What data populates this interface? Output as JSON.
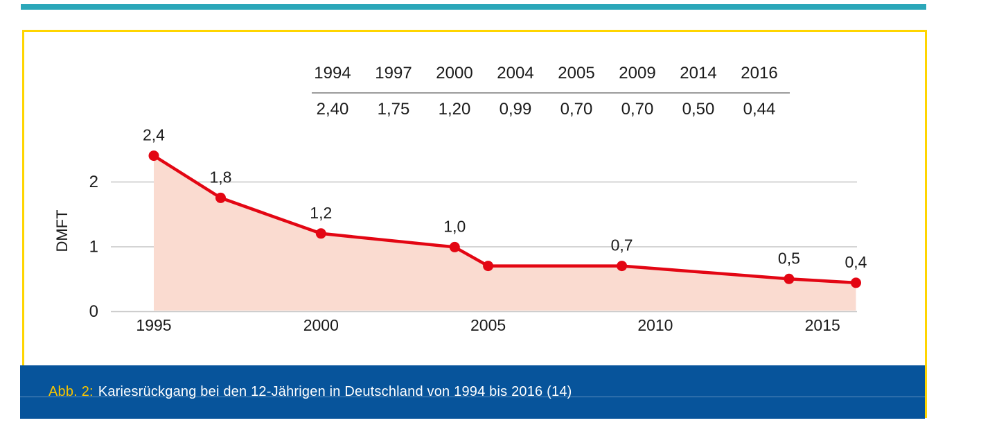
{
  "accent_bar": {
    "color": "#2BA7B9"
  },
  "figure_box": {
    "border_color": "#FFD500",
    "background": "#FFFFFF"
  },
  "caption": {
    "bar_color": "#07549B",
    "label": "Abb. 2:",
    "label_color": "#F7C400",
    "text": "Kariesrückgang bei den 12-Jährigen in Deutschland von 1994 bis 2016 (14)",
    "text_color": "#FFFFFF"
  },
  "data_table": {
    "years": [
      "1994",
      "1997",
      "2000",
      "2004",
      "2005",
      "2009",
      "2014",
      "2016"
    ],
    "values": [
      "2,40",
      "1,75",
      "1,20",
      "0,99",
      "0,70",
      "0,70",
      "0,50",
      "0,44"
    ],
    "rule_color": "#9C9C9C"
  },
  "chart_data": {
    "type": "area",
    "title": "",
    "xlabel": "",
    "ylabel": "DMFT",
    "x": [
      1994,
      1997,
      2000,
      2004,
      2005,
      2009,
      2014,
      2016
    ],
    "values": [
      2.4,
      1.75,
      1.2,
      0.99,
      0.7,
      0.7,
      0.5,
      0.44
    ],
    "point_labels": [
      "2,4",
      "1,8",
      "1,2",
      "1,0",
      "",
      "0,7",
      "0,5",
      "0,4"
    ],
    "x_tick_years": [
      1995,
      2000,
      2005,
      2010,
      2015
    ],
    "x_tick_labels": [
      "1995",
      "2000",
      "2005",
      "2010",
      "2015"
    ],
    "y_ticks": [
      0,
      1,
      2
    ],
    "y_tick_labels": [
      "0",
      "1",
      "2"
    ],
    "ylim": [
      0,
      2.5
    ],
    "grid": true,
    "legend": false,
    "line_color": "#E30613",
    "fill_color": "#FADBD0",
    "grid_color": "#C6C6C6",
    "plot_x_years": [
      1995,
      1997,
      2000,
      2004,
      2005,
      2009,
      2014,
      2016
    ]
  }
}
